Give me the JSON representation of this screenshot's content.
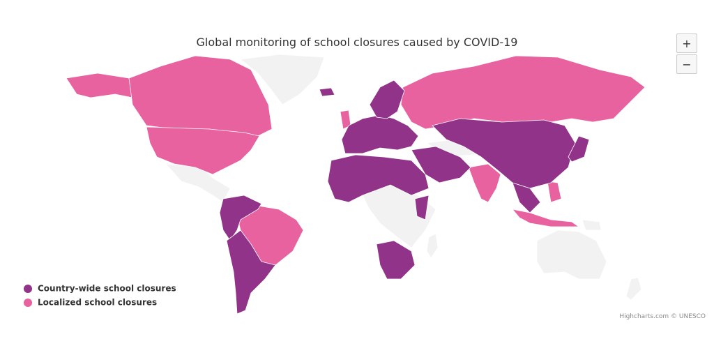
{
  "title": "Global monitoring of school closures caused by COVID-19",
  "legend": [
    {
      "label": "Country-wide school closures",
      "color": "#92338a"
    },
    {
      "label": "Localized school closures",
      "color": "#e8629f"
    }
  ],
  "no_data_color": "#f2f2f2",
  "credits": "Highcharts.com © UNESCO",
  "zoom": {
    "in": "+",
    "out": "−"
  }
}
